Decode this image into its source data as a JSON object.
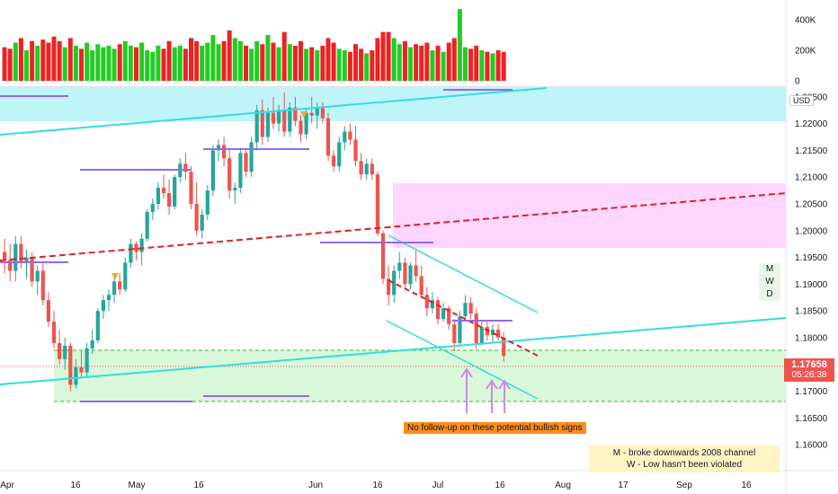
{
  "chart_data": {
    "type": "candlestick",
    "symbol_currency": "USD",
    "x_ticks": [
      "Apr",
      "16",
      "May",
      "16",
      "Jun",
      "16",
      "Jul",
      "16",
      "Aug",
      "17",
      "Sep",
      "16"
    ],
    "x_tick_dates": [
      "2021-04-01",
      "2021-04-16",
      "2021-05-01",
      "2021-05-16",
      "2021-06-01",
      "2021-06-16",
      "2021-07-01",
      "2021-07-16",
      "2021-08-01",
      "2021-08-17",
      "2021-09-01",
      "2021-09-16"
    ],
    "price_ticks": [
      "1.22500",
      "1.22000",
      "1.21500",
      "1.21000",
      "1.20500",
      "1.20000",
      "1.19500",
      "1.19000",
      "1.18500",
      "1.18000",
      "1.17500",
      "1.17000",
      "1.16500",
      "1.16000"
    ],
    "price_range": [
      1.1555,
      1.2258
    ],
    "volume_ticks": [
      "400K",
      "200K",
      "0"
    ],
    "volume_range": [
      0,
      500000
    ],
    "last_price": "1.17658",
    "countdown": "05:26:38",
    "candles": [
      {
        "o": 1.196,
        "h": 1.1985,
        "l": 1.192,
        "c": 1.1945,
        "v": 220000
      },
      {
        "o": 1.1945,
        "h": 1.1975,
        "l": 1.1905,
        "c": 1.1925,
        "v": 210000
      },
      {
        "o": 1.1925,
        "h": 1.199,
        "l": 1.1905,
        "c": 1.1975,
        "v": 250000
      },
      {
        "o": 1.1975,
        "h": 1.199,
        "l": 1.193,
        "c": 1.194,
        "v": 280000
      },
      {
        "o": 1.194,
        "h": 1.1965,
        "l": 1.191,
        "c": 1.195,
        "v": 200000
      },
      {
        "o": 1.195,
        "h": 1.196,
        "l": 1.1895,
        "c": 1.1905,
        "v": 260000
      },
      {
        "o": 1.1905,
        "h": 1.1935,
        "l": 1.188,
        "c": 1.1925,
        "v": 230000
      },
      {
        "o": 1.1925,
        "h": 1.194,
        "l": 1.186,
        "c": 1.187,
        "v": 270000
      },
      {
        "o": 1.187,
        "h": 1.1885,
        "l": 1.182,
        "c": 1.183,
        "v": 250000
      },
      {
        "o": 1.183,
        "h": 1.185,
        "l": 1.178,
        "c": 1.179,
        "v": 290000
      },
      {
        "o": 1.179,
        "h": 1.1815,
        "l": 1.175,
        "c": 1.176,
        "v": 260000
      },
      {
        "o": 1.176,
        "h": 1.18,
        "l": 1.174,
        "c": 1.1785,
        "v": 220000
      },
      {
        "o": 1.1785,
        "h": 1.179,
        "l": 1.17,
        "c": 1.1712,
        "v": 280000
      },
      {
        "o": 1.1712,
        "h": 1.176,
        "l": 1.1705,
        "c": 1.1745,
        "v": 230000
      },
      {
        "o": 1.1745,
        "h": 1.1775,
        "l": 1.1725,
        "c": 1.1735,
        "v": 210000
      },
      {
        "o": 1.1735,
        "h": 1.179,
        "l": 1.1725,
        "c": 1.178,
        "v": 250000
      },
      {
        "o": 1.178,
        "h": 1.1815,
        "l": 1.177,
        "c": 1.1795,
        "v": 200000
      },
      {
        "o": 1.1795,
        "h": 1.1855,
        "l": 1.179,
        "c": 1.185,
        "v": 240000
      },
      {
        "o": 1.185,
        "h": 1.188,
        "l": 1.1835,
        "c": 1.187,
        "v": 220000
      },
      {
        "o": 1.187,
        "h": 1.189,
        "l": 1.185,
        "c": 1.188,
        "v": 230000
      },
      {
        "o": 1.188,
        "h": 1.1915,
        "l": 1.1865,
        "c": 1.1905,
        "v": 210000
      },
      {
        "o": 1.1905,
        "h": 1.192,
        "l": 1.188,
        "c": 1.189,
        "v": 240000
      },
      {
        "o": 1.189,
        "h": 1.195,
        "l": 1.1885,
        "c": 1.194,
        "v": 260000
      },
      {
        "o": 1.194,
        "h": 1.1985,
        "l": 1.193,
        "c": 1.1975,
        "v": 230000
      },
      {
        "o": 1.1975,
        "h": 1.198,
        "l": 1.1945,
        "c": 1.196,
        "v": 220000
      },
      {
        "o": 1.196,
        "h": 1.1995,
        "l": 1.1935,
        "c": 1.1985,
        "v": 250000
      },
      {
        "o": 1.1985,
        "h": 1.204,
        "l": 1.198,
        "c": 1.2035,
        "v": 200000
      },
      {
        "o": 1.2035,
        "h": 1.206,
        "l": 1.202,
        "c": 1.205,
        "v": 190000
      },
      {
        "o": 1.205,
        "h": 1.209,
        "l": 1.204,
        "c": 1.208,
        "v": 230000
      },
      {
        "o": 1.208,
        "h": 1.2105,
        "l": 1.206,
        "c": 1.207,
        "v": 210000
      },
      {
        "o": 1.207,
        "h": 1.2095,
        "l": 1.203,
        "c": 1.2045,
        "v": 260000
      },
      {
        "o": 1.2045,
        "h": 1.2105,
        "l": 1.204,
        "c": 1.21,
        "v": 220000
      },
      {
        "o": 1.21,
        "h": 1.2135,
        "l": 1.209,
        "c": 1.2125,
        "v": 230000
      },
      {
        "o": 1.2125,
        "h": 1.2145,
        "l": 1.2095,
        "c": 1.211,
        "v": 210000
      },
      {
        "o": 1.211,
        "h": 1.212,
        "l": 1.204,
        "c": 1.205,
        "v": 280000
      },
      {
        "o": 1.205,
        "h": 1.209,
        "l": 1.199,
        "c": 1.2,
        "v": 260000
      },
      {
        "o": 1.2,
        "h": 1.204,
        "l": 1.1985,
        "c": 1.203,
        "v": 230000
      },
      {
        "o": 1.203,
        "h": 1.2085,
        "l": 1.202,
        "c": 1.2075,
        "v": 250000
      },
      {
        "o": 1.2075,
        "h": 1.216,
        "l": 1.2065,
        "c": 1.215,
        "v": 300000
      },
      {
        "o": 1.215,
        "h": 1.217,
        "l": 1.213,
        "c": 1.216,
        "v": 240000
      },
      {
        "o": 1.216,
        "h": 1.2175,
        "l": 1.212,
        "c": 1.2135,
        "v": 260000
      },
      {
        "o": 1.2135,
        "h": 1.215,
        "l": 1.206,
        "c": 1.2075,
        "v": 330000
      },
      {
        "o": 1.2075,
        "h": 1.209,
        "l": 1.205,
        "c": 1.208,
        "v": 280000
      },
      {
        "o": 1.208,
        "h": 1.2155,
        "l": 1.207,
        "c": 1.2145,
        "v": 260000
      },
      {
        "o": 1.2145,
        "h": 1.215,
        "l": 1.21,
        "c": 1.211,
        "v": 230000
      },
      {
        "o": 1.211,
        "h": 1.2175,
        "l": 1.21,
        "c": 1.2165,
        "v": 210000
      },
      {
        "o": 1.2165,
        "h": 1.2235,
        "l": 1.215,
        "c": 1.2225,
        "v": 260000
      },
      {
        "o": 1.2225,
        "h": 1.2245,
        "l": 1.216,
        "c": 1.2175,
        "v": 240000
      },
      {
        "o": 1.2175,
        "h": 1.223,
        "l": 1.2165,
        "c": 1.222,
        "v": 300000
      },
      {
        "o": 1.222,
        "h": 1.225,
        "l": 1.219,
        "c": 1.22,
        "v": 250000
      },
      {
        "o": 1.22,
        "h": 1.2235,
        "l": 1.2185,
        "c": 1.2225,
        "v": 220000
      },
      {
        "o": 1.2225,
        "h": 1.2258,
        "l": 1.2175,
        "c": 1.2185,
        "v": 320000
      },
      {
        "o": 1.2185,
        "h": 1.224,
        "l": 1.2175,
        "c": 1.223,
        "v": 240000
      },
      {
        "o": 1.223,
        "h": 1.225,
        "l": 1.2195,
        "c": 1.2205,
        "v": 230000
      },
      {
        "o": 1.2205,
        "h": 1.2215,
        "l": 1.2165,
        "c": 1.218,
        "v": 260000
      },
      {
        "o": 1.218,
        "h": 1.223,
        "l": 1.217,
        "c": 1.222,
        "v": 210000
      },
      {
        "o": 1.222,
        "h": 1.225,
        "l": 1.22,
        "c": 1.2215,
        "v": 220000
      },
      {
        "o": 1.2215,
        "h": 1.224,
        "l": 1.219,
        "c": 1.223,
        "v": 200000
      },
      {
        "o": 1.223,
        "h": 1.224,
        "l": 1.22,
        "c": 1.221,
        "v": 230000
      },
      {
        "o": 1.221,
        "h": 1.222,
        "l": 1.213,
        "c": 1.214,
        "v": 280000
      },
      {
        "o": 1.214,
        "h": 1.215,
        "l": 1.211,
        "c": 1.212,
        "v": 250000
      },
      {
        "o": 1.212,
        "h": 1.2175,
        "l": 1.211,
        "c": 1.2165,
        "v": 210000
      },
      {
        "o": 1.2165,
        "h": 1.2195,
        "l": 1.215,
        "c": 1.2185,
        "v": 200000
      },
      {
        "o": 1.2185,
        "h": 1.22,
        "l": 1.216,
        "c": 1.217,
        "v": 190000
      },
      {
        "o": 1.217,
        "h": 1.2195,
        "l": 1.212,
        "c": 1.213,
        "v": 240000
      },
      {
        "o": 1.213,
        "h": 1.2145,
        "l": 1.2095,
        "c": 1.2105,
        "v": 210000
      },
      {
        "o": 1.2105,
        "h": 1.2135,
        "l": 1.2095,
        "c": 1.2125,
        "v": 180000
      },
      {
        "o": 1.2125,
        "h": 1.2135,
        "l": 1.2095,
        "c": 1.2105,
        "v": 200000
      },
      {
        "o": 1.2105,
        "h": 1.211,
        "l": 1.199,
        "c": 1.1995,
        "v": 280000
      },
      {
        "o": 1.1995,
        "h": 1.2,
        "l": 1.19,
        "c": 1.191,
        "v": 320000
      },
      {
        "o": 1.191,
        "h": 1.1935,
        "l": 1.186,
        "c": 1.188,
        "v": 320000
      },
      {
        "o": 1.188,
        "h": 1.1935,
        "l": 1.1865,
        "c": 1.1925,
        "v": 280000
      },
      {
        "o": 1.1925,
        "h": 1.196,
        "l": 1.191,
        "c": 1.194,
        "v": 240000
      },
      {
        "o": 1.194,
        "h": 1.195,
        "l": 1.189,
        "c": 1.19,
        "v": 260000
      },
      {
        "o": 1.19,
        "h": 1.194,
        "l": 1.189,
        "c": 1.1935,
        "v": 220000
      },
      {
        "o": 1.1935,
        "h": 1.1965,
        "l": 1.1905,
        "c": 1.1915,
        "v": 240000
      },
      {
        "o": 1.1915,
        "h": 1.1935,
        "l": 1.1875,
        "c": 1.188,
        "v": 230000
      },
      {
        "o": 1.188,
        "h": 1.1895,
        "l": 1.184,
        "c": 1.1855,
        "v": 250000
      },
      {
        "o": 1.1855,
        "h": 1.1885,
        "l": 1.1845,
        "c": 1.187,
        "v": 200000
      },
      {
        "o": 1.187,
        "h": 1.1875,
        "l": 1.1825,
        "c": 1.1835,
        "v": 230000
      },
      {
        "o": 1.1835,
        "h": 1.1865,
        "l": 1.183,
        "c": 1.1855,
        "v": 190000
      },
      {
        "o": 1.1855,
        "h": 1.186,
        "l": 1.1815,
        "c": 1.1825,
        "v": 250000
      },
      {
        "o": 1.1825,
        "h": 1.1835,
        "l": 1.1775,
        "c": 1.179,
        "v": 280000
      },
      {
        "o": 1.179,
        "h": 1.185,
        "l": 1.1785,
        "c": 1.184,
        "v": 470000
      },
      {
        "o": 1.184,
        "h": 1.188,
        "l": 1.183,
        "c": 1.1865,
        "v": 220000
      },
      {
        "o": 1.1865,
        "h": 1.1875,
        "l": 1.1835,
        "c": 1.1845,
        "v": 210000
      },
      {
        "o": 1.1845,
        "h": 1.1855,
        "l": 1.178,
        "c": 1.179,
        "v": 230000
      },
      {
        "o": 1.179,
        "h": 1.183,
        "l": 1.1785,
        "c": 1.182,
        "v": 200000
      },
      {
        "o": 1.182,
        "h": 1.183,
        "l": 1.1795,
        "c": 1.1805,
        "v": 190000
      },
      {
        "o": 1.1805,
        "h": 1.1825,
        "l": 1.179,
        "c": 1.1815,
        "v": 180000
      },
      {
        "o": 1.1815,
        "h": 1.1825,
        "l": 1.1795,
        "c": 1.18,
        "v": 200000
      },
      {
        "o": 1.18,
        "h": 1.181,
        "l": 1.1755,
        "c": 1.1766,
        "v": 190000
      }
    ]
  },
  "colors": {
    "up": "#26a69a",
    "down": "#ef5350",
    "vol_up": "#22cc22",
    "vol_down": "#ee2222",
    "cyan": "#33dddd",
    "red_dash": "#dd2222",
    "purple": "#9966ee",
    "demand_zone": "#c8f5c8",
    "supply_zone": "#ffccff",
    "top_zone": "#bff5f8"
  },
  "labels": {
    "currency": "USD",
    "mwd": [
      "M",
      "W",
      "D"
    ],
    "note_orange": "No follow-up on these potential bullish signs",
    "note_yellow_1": "M - broke downwards 2008 channel",
    "note_yellow_2": "W - Low hasn't been violated",
    "last_price": "1.17658",
    "countdown": "05:26:38"
  }
}
